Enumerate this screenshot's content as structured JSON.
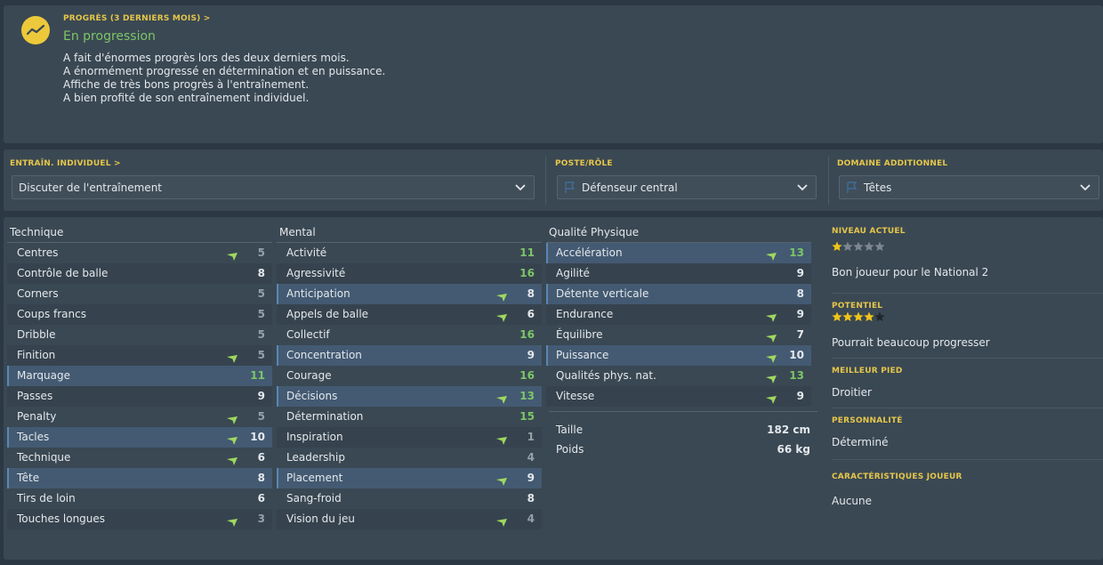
{
  "progress": {
    "title": "PROGRÈS (3 DERNIERS MOIS) >",
    "status": "En progression",
    "notes": [
      "A fait d'énormes progrès lors des deux derniers mois.",
      "A énormément progressé en détermination et en puissance.",
      "Affiche de très bons progrès à l'entraînement.",
      "A bien profité de son entraînement individuel."
    ]
  },
  "training": {
    "individual_title": "ENTRAÎN. INDIVIDUEL >",
    "individual_value": "Discuter de l'entraînement",
    "position_title": "POSTE/RÔLE",
    "position_value": "Défenseur central",
    "additional_title": "DOMAINE ADDITIONNEL",
    "additional_value": "Têtes"
  },
  "technique": {
    "header": "Technique",
    "rows": [
      {
        "name": "Centres",
        "value": "5",
        "arrow": true,
        "style": "low",
        "hl": false
      },
      {
        "name": "Contrôle de balle",
        "value": "8",
        "arrow": false,
        "style": "mid",
        "hl": false
      },
      {
        "name": "Corners",
        "value": "5",
        "arrow": false,
        "style": "low",
        "hl": false
      },
      {
        "name": "Coups francs",
        "value": "5",
        "arrow": false,
        "style": "low",
        "hl": false
      },
      {
        "name": "Dribble",
        "value": "5",
        "arrow": false,
        "style": "low",
        "hl": false
      },
      {
        "name": "Finition",
        "value": "5",
        "arrow": true,
        "style": "low",
        "hl": false
      },
      {
        "name": "Marquage",
        "value": "11",
        "arrow": false,
        "style": "high",
        "hl": true
      },
      {
        "name": "Passes",
        "value": "9",
        "arrow": false,
        "style": "mid",
        "hl": false
      },
      {
        "name": "Penalty",
        "value": "5",
        "arrow": true,
        "style": "low",
        "hl": false
      },
      {
        "name": "Tacles",
        "value": "10",
        "arrow": true,
        "style": "mid",
        "hl": true
      },
      {
        "name": "Technique",
        "value": "6",
        "arrow": true,
        "style": "mid",
        "hl": false
      },
      {
        "name": "Tête",
        "value": "8",
        "arrow": false,
        "style": "mid",
        "hl": true
      },
      {
        "name": "Tirs de loin",
        "value": "6",
        "arrow": false,
        "style": "mid",
        "hl": false
      },
      {
        "name": "Touches longues",
        "value": "3",
        "arrow": true,
        "style": "low",
        "hl": false
      }
    ]
  },
  "mental": {
    "header": "Mental",
    "rows": [
      {
        "name": "Activité",
        "value": "11",
        "arrow": false,
        "style": "high",
        "hl": false
      },
      {
        "name": "Agressivité",
        "value": "16",
        "arrow": false,
        "style": "high",
        "hl": false
      },
      {
        "name": "Anticipation",
        "value": "8",
        "arrow": true,
        "style": "mid",
        "hl": true
      },
      {
        "name": "Appels de balle",
        "value": "6",
        "arrow": true,
        "style": "mid",
        "hl": false
      },
      {
        "name": "Collectif",
        "value": "16",
        "arrow": false,
        "style": "high",
        "hl": false
      },
      {
        "name": "Concentration",
        "value": "9",
        "arrow": false,
        "style": "mid",
        "hl": true
      },
      {
        "name": "Courage",
        "value": "16",
        "arrow": false,
        "style": "high",
        "hl": false
      },
      {
        "name": "Décisions",
        "value": "13",
        "arrow": true,
        "style": "high",
        "hl": true
      },
      {
        "name": "Détermination",
        "value": "15",
        "arrow": false,
        "style": "high",
        "hl": false
      },
      {
        "name": "Inspiration",
        "value": "1",
        "arrow": true,
        "style": "low",
        "hl": false
      },
      {
        "name": "Leadership",
        "value": "4",
        "arrow": false,
        "style": "low",
        "hl": false
      },
      {
        "name": "Placement",
        "value": "9",
        "arrow": true,
        "style": "mid",
        "hl": true
      },
      {
        "name": "Sang-froid",
        "value": "8",
        "arrow": false,
        "style": "mid",
        "hl": false
      },
      {
        "name": "Vision du jeu",
        "value": "4",
        "arrow": true,
        "style": "low",
        "hl": false
      }
    ]
  },
  "physical": {
    "header": "Qualité Physique",
    "rows": [
      {
        "name": "Accélération",
        "value": "13",
        "arrow": true,
        "style": "high",
        "hl": true
      },
      {
        "name": "Agilité",
        "value": "9",
        "arrow": false,
        "style": "mid",
        "hl": false
      },
      {
        "name": "Détente verticale",
        "value": "8",
        "arrow": false,
        "style": "mid",
        "hl": true
      },
      {
        "name": "Endurance",
        "value": "9",
        "arrow": true,
        "style": "mid",
        "hl": false
      },
      {
        "name": "Équilibre",
        "value": "7",
        "arrow": true,
        "style": "mid",
        "hl": false
      },
      {
        "name": "Puissance",
        "value": "10",
        "arrow": true,
        "style": "mid",
        "hl": true
      },
      {
        "name": "Qualités phys. nat.",
        "value": "13",
        "arrow": true,
        "style": "high",
        "hl": false
      },
      {
        "name": "Vitesse",
        "value": "9",
        "arrow": true,
        "style": "mid",
        "hl": false
      }
    ],
    "height_label": "Taille",
    "height_value": "182 cm",
    "weight_label": "Poids",
    "weight_value": "66 kg"
  },
  "info": {
    "current_level_title": "NIVEAU ACTUEL",
    "current_level_stars": 1,
    "current_level_text": "Bon joueur pour le National 2",
    "potential_title": "POTENTIEL",
    "potential_stars": 4,
    "potential_text": "Pourrait beaucoup progresser",
    "foot_title": "MEILLEUR PIED",
    "foot_value": "Droitier",
    "personality_title": "PERSONNALITÉ",
    "personality_value": "Déterminé",
    "traits_title": "CARACTÉRISTIQUES JOUEUR",
    "traits_value": "Aucune"
  },
  "colors": {
    "accent_yellow": "#e5c64a",
    "green_value": "#7dc667",
    "arrow_green": "#9fd85f",
    "highlight_row": "#435a72",
    "star_gold": "#f0c419"
  }
}
